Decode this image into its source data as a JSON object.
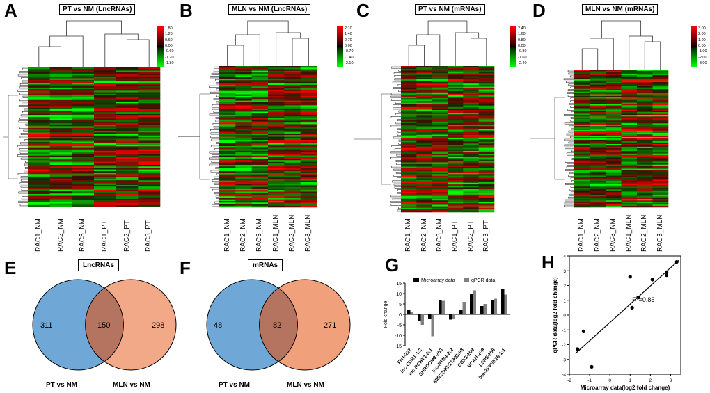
{
  "panels": {
    "A": {
      "letter": "A",
      "title": "PT vs NM (LncRNAs)",
      "legend": [
        "1.80",
        "1.20",
        "0.60",
        "0.00",
        "-0.60",
        "-1.20",
        "-1.80"
      ],
      "columns": [
        "RAC1_NM",
        "RAC2_NM",
        "RAC3_NM",
        "RAC1_PT",
        "RAC2_PT",
        "RAC3_PT"
      ]
    },
    "B": {
      "letter": "B",
      "title": "MLN vs NM (LncRNAs)",
      "legend": [
        "2.10",
        "1.40",
        "0.70",
        "0.00",
        "-0.70",
        "-1.40",
        "-2.10"
      ],
      "columns": [
        "RAC1_NM",
        "RAC2_NM",
        "RAC3_NM",
        "RAC1_MLN",
        "RAC2_MLN",
        "RAC3_MLN"
      ]
    },
    "C": {
      "letter": "C",
      "title": "PT vs NM (mRNAs)",
      "legend": [
        "2.40",
        "1.60",
        "0.80",
        "0.00",
        "-0.80",
        "-1.60",
        "-2.40"
      ],
      "columns": [
        "RAC1_NM",
        "RAC2_NM",
        "RAC3_NM",
        "RAC1_PT",
        "RAC2_PT",
        "RAC3_PT"
      ]
    },
    "D": {
      "letter": "D",
      "title": "MLN vs NM (mRNAs)",
      "legend": [
        "3.00",
        "2.00",
        "1.00",
        "0.00",
        "-1.00",
        "-2.00",
        "-3.00"
      ],
      "columns": [
        "RAC1_NM",
        "RAC2_NM",
        "RAC3_NM",
        "RAC1_MLN",
        "RAC2_MLN",
        "RAC3_MLN"
      ]
    },
    "E": {
      "letter": "E",
      "title": "LncRNAs",
      "left": "311",
      "middle": "150",
      "right": "298",
      "left_set": "PT vs NM",
      "right_set": "MLN vs NM"
    },
    "F": {
      "letter": "F",
      "title": "mRNAs",
      "left": "48",
      "middle": "82",
      "right": "271",
      "left_set": "PT vs NM",
      "right_set": "MLN vs NM"
    },
    "G": {
      "letter": "G"
    },
    "H": {
      "letter": "H"
    }
  },
  "colors": {
    "venn_left": "#6fa8d6",
    "venn_right": "#f0a07a",
    "venn_overlap": "#b5745f",
    "hm_red": "#ff0000",
    "hm_green": "#00ff00"
  },
  "chart_data": [
    {
      "type": "bar",
      "ylabel": "Fold change",
      "ylim": [
        -15,
        15
      ],
      "yticks": [
        "15",
        "10",
        "5",
        "0",
        "-5",
        "-10",
        "-15"
      ],
      "categories": [
        "FN1-227",
        "lnc-CDR1-1:2",
        "lnc-RCHY1-6:1",
        "SHROOM3-203",
        "lnc-RTN4-2:2",
        "MIR22HG:ZCHG:93",
        "CBX3-208",
        "VCAN-209",
        "LSR5-206",
        "lnc-ZFYVE26-1:1"
      ],
      "series": [
        {
          "name": "Microarray data",
          "color": "#000000",
          "values": [
            2,
            -3,
            -2,
            7,
            -2.5,
            2,
            10,
            4,
            7,
            12
          ]
        },
        {
          "name": "qPCR data",
          "color": "#808080",
          "values": [
            1,
            -5,
            -10.5,
            6.5,
            -2,
            6,
            11.5,
            5,
            7.5,
            9.5
          ]
        }
      ]
    },
    {
      "type": "scatter",
      "xlabel": "Microarray data(log2 fold change)",
      "ylabel": "qPCR data(log2 fold change)",
      "xlim": [
        -2,
        3.5
      ],
      "ylim": [
        -4,
        4
      ],
      "xticks": [
        "-2",
        "-1",
        "0",
        "1",
        "2",
        "3"
      ],
      "yticks": [
        "4",
        "3",
        "2",
        "1",
        "0",
        "-1",
        "-2",
        "-3",
        "-4"
      ],
      "annotation": "R²=0.85",
      "points": [
        [
          -1.6,
          -2.3
        ],
        [
          -1.3,
          -1.1
        ],
        [
          -0.9,
          -3.5
        ],
        [
          1.0,
          2.6
        ],
        [
          1.1,
          0.5
        ],
        [
          1.4,
          1.2
        ],
        [
          2.1,
          2.4
        ],
        [
          2.8,
          2.7
        ],
        [
          2.8,
          2.9
        ],
        [
          3.3,
          3.6
        ]
      ],
      "fit": [
        [
          -1.7,
          -2.6
        ],
        [
          3.4,
          3.7
        ]
      ]
    }
  ]
}
